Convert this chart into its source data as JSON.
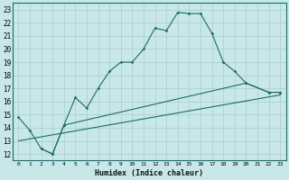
{
  "title": "",
  "xlabel": "Humidex (Indice chaleur)",
  "xlim": [
    -0.5,
    23.5
  ],
  "ylim": [
    11.5,
    23.5
  ],
  "yticks": [
    12,
    13,
    14,
    15,
    16,
    17,
    18,
    19,
    20,
    21,
    22,
    23
  ],
  "xticks": [
    0,
    1,
    2,
    3,
    4,
    5,
    6,
    7,
    8,
    9,
    10,
    11,
    12,
    13,
    14,
    15,
    16,
    17,
    18,
    19,
    20,
    21,
    22,
    23
  ],
  "xtick_labels": [
    "0",
    "1",
    "2",
    "3",
    "4",
    "5",
    "6",
    "7",
    "8",
    "9",
    "10",
    "11",
    "12",
    "13",
    "14",
    "15",
    "16",
    "17",
    "18",
    "19",
    "20",
    "21",
    "22",
    "23"
  ],
  "bg_color": "#c8e8e8",
  "line_color": "#1a6b6b",
  "grid_color": "#a8cccc",
  "line1_x": [
    0,
    1,
    2,
    3,
    4,
    5,
    6,
    7,
    8,
    9,
    10,
    11,
    12,
    13,
    14,
    15,
    16,
    17,
    18,
    19,
    20,
    22,
    23
  ],
  "line1_y": [
    14.8,
    13.8,
    12.4,
    12.0,
    14.2,
    16.3,
    15.5,
    17.0,
    18.3,
    19.0,
    19.0,
    20.0,
    21.6,
    21.4,
    22.8,
    22.7,
    22.7,
    21.2,
    19.0,
    18.3,
    17.4,
    16.7,
    16.7
  ],
  "line2_x": [
    2,
    3,
    4,
    20,
    22,
    23
  ],
  "line2_y": [
    12.4,
    12.0,
    14.2,
    17.4,
    16.7,
    16.7
  ],
  "line3_x": [
    0,
    23
  ],
  "line3_y": [
    13.0,
    16.5
  ]
}
